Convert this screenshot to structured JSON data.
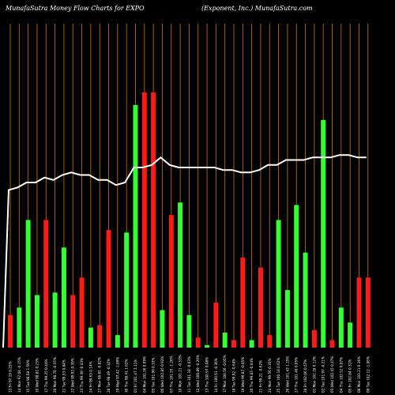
{
  "title_left": "MunafaSutra  Money Flow  Charts for EXPO",
  "title_right": "(Exponent,  Inc.) MunafaSutra.com",
  "colors": {
    "background": "#000000",
    "gridline": "#c87800",
    "up_bar": "#33ff33",
    "down_bar": "#ff1a1a",
    "price_line": "#ffffff"
  },
  "chart_data": {
    "type": "bar",
    "title": "MunafaSutra  Money Flow  Charts for EXPO",
    "subtitle": "(Exponent,  Inc.) MunafaSutra.com",
    "gridlines": true,
    "ylim": [
      0,
      100
    ],
    "categories": [
      "13 Fri 97.19 0.25%",
      "14 Mon 97.04 -0.15%",
      "15 Tue 98.58 1.59%",
      "16 Wed 98.81 0.23%",
      "17 Thu 99.25 0.44%",
      "20 Mon 98.70 -0.55%",
      "21 Tue 99.53 0.84%",
      "22 Wed 99.92 0.39%",
      "23 Thu 99.49 -0.43%",
      "24 Fri 99.63 0.14%",
      "27 Mon 98.81 -0.82%",
      "28 Tue 98.49 -0.32%",
      "29 Wed 97.42 -1.09%",
      "30 Thu 98.41 1.02%",
      "01 Fri 101.47 3.11%",
      "04 Mon 101.56 0.09%",
      "05 Tue 101.90 0.33%",
      "06 Wed 102.85 0.93%",
      "07 Thu 101.55 -1.26%",
      "10 Mon 101.21 -0.33%",
      "11 Tue 101.18 -0.03%",
      "12 Wed 100.89 -0.29%",
      "13 Thu 100.97 0.08%",
      "14 Fri 100.61 -0.36%",
      "17 Mon 100.56 -0.05%",
      "18 Tue 99.92 -0.64%",
      "19 Wed 99.87 -0.05%",
      "20 Thu 99.83 -0.04%",
      "21 Fri 99.21 -0.62%",
      "24 Mon 99.56 0.35%",
      "25 Tue 100.18 0.62%",
      "26 Wed 101.43 1.25%",
      "27 Thu 101.48 0.05%",
      "28 Fri 102.06 0.57%",
      "01 Mon 102.18 0.12%",
      "02 Tue 101.97 -0.21%",
      "03 Wed 102.45 0.47%",
      "04 Thu 102.52 0.07%",
      "05 Fri 102.84 0.31%",
      "08 Mon 103.21 0.36%",
      "09 Tue 102.12 -1.06%"
    ],
    "bar_colors": [
      "red",
      "green",
      "green",
      "green",
      "red",
      "green",
      "green",
      "red",
      "red",
      "green",
      "red",
      "red",
      "green",
      "green",
      "green",
      "red",
      "red",
      "green",
      "red",
      "green",
      "green",
      "red",
      "green",
      "red",
      "green",
      "red",
      "red",
      "green",
      "red",
      "red",
      "green",
      "green",
      "green",
      "green",
      "red",
      "green",
      "red",
      "green",
      "green",
      "red",
      "red"
    ],
    "series": [
      {
        "values": [
          13,
          16,
          51,
          21,
          51,
          22,
          40,
          21,
          28,
          8,
          9,
          47,
          5,
          46,
          97,
          102,
          102,
          15,
          53,
          58,
          13,
          4,
          1,
          18,
          6,
          3,
          36,
          3,
          32,
          5,
          51,
          23,
          57,
          38,
          7,
          91,
          3,
          16,
          10,
          28,
          28
        ]
      },
      {
        "values": [
          63,
          64,
          66,
          66,
          68,
          67,
          69,
          70,
          69,
          69,
          67,
          67,
          65,
          66,
          72,
          72,
          73,
          76,
          73,
          72,
          72,
          72,
          72,
          72,
          71,
          71,
          70,
          70,
          71,
          73,
          73,
          75,
          75,
          75,
          76,
          76,
          76,
          77,
          77,
          76,
          76
        ]
      }
    ]
  }
}
